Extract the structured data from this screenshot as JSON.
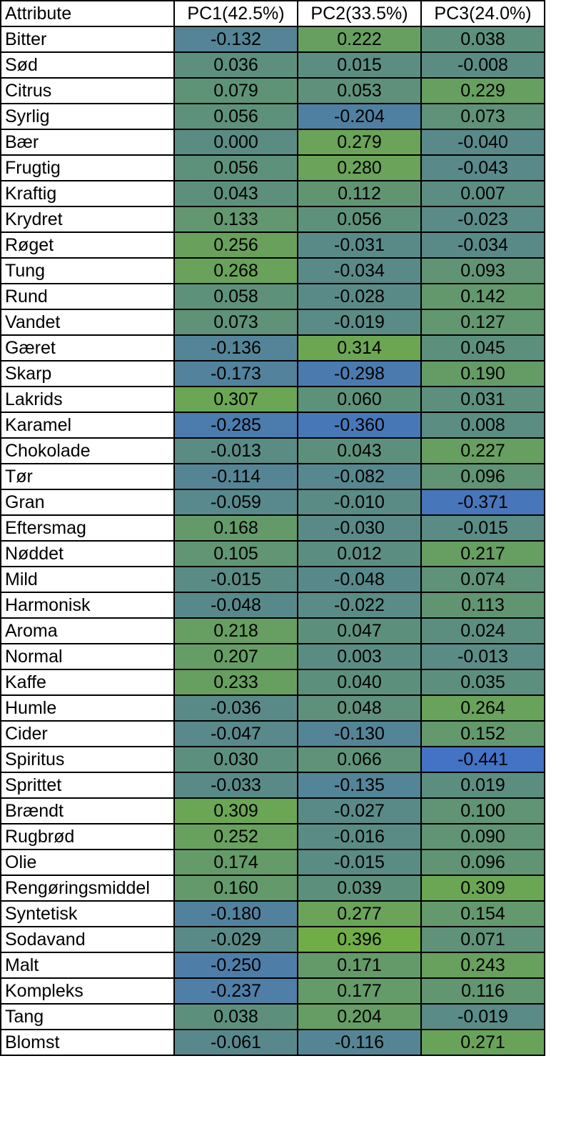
{
  "chart_data": {
    "type": "heatmap",
    "columns": [
      "Attribute",
      "PC1(42.5%)",
      "PC2(33.5%)",
      "PC3(24.0%)"
    ],
    "rows": [
      {
        "label": "Bitter",
        "values": [
          "-0.132",
          "0.222",
          "0.038"
        ]
      },
      {
        "label": "Sød",
        "values": [
          "0.036",
          "0.015",
          "-0.008"
        ]
      },
      {
        "label": "Citrus",
        "values": [
          "0.079",
          "0.053",
          "0.229"
        ]
      },
      {
        "label": "Syrlig",
        "values": [
          "0.056",
          "-0.204",
          "0.073"
        ]
      },
      {
        "label": "Bær",
        "values": [
          "0.000",
          "0.279",
          "-0.040"
        ]
      },
      {
        "label": "Frugtig",
        "values": [
          "0.056",
          "0.280",
          "-0.043"
        ]
      },
      {
        "label": "Kraftig",
        "values": [
          "0.043",
          "0.112",
          "0.007"
        ]
      },
      {
        "label": "Krydret",
        "values": [
          "0.133",
          "0.056",
          "-0.023"
        ]
      },
      {
        "label": "Røget",
        "values": [
          "0.256",
          "-0.031",
          "-0.034"
        ]
      },
      {
        "label": "Tung",
        "values": [
          "0.268",
          "-0.034",
          "0.093"
        ]
      },
      {
        "label": "Rund",
        "values": [
          "0.058",
          "-0.028",
          "0.142"
        ]
      },
      {
        "label": "Vandet",
        "values": [
          "0.073",
          "-0.019",
          "0.127"
        ]
      },
      {
        "label": "Gæret",
        "values": [
          "-0.136",
          "0.314",
          "0.045"
        ]
      },
      {
        "label": "Skarp",
        "values": [
          "-0.173",
          "-0.298",
          "0.190"
        ]
      },
      {
        "label": "Lakrids",
        "values": [
          "0.307",
          "0.060",
          "0.031"
        ]
      },
      {
        "label": "Karamel",
        "values": [
          "-0.285",
          "-0.360",
          "0.008"
        ]
      },
      {
        "label": "Chokolade",
        "values": [
          "-0.013",
          "0.043",
          "0.227"
        ]
      },
      {
        "label": "Tør",
        "values": [
          "-0.114",
          "-0.082",
          "0.096"
        ]
      },
      {
        "label": "Gran",
        "values": [
          "-0.059",
          "-0.010",
          "-0.371"
        ]
      },
      {
        "label": "Eftersmag",
        "values": [
          "0.168",
          "-0.030",
          "-0.015"
        ]
      },
      {
        "label": "Nøddet",
        "values": [
          "0.105",
          "0.012",
          "0.217"
        ]
      },
      {
        "label": "Mild",
        "values": [
          "-0.015",
          "-0.048",
          "0.074"
        ]
      },
      {
        "label": "Harmonisk",
        "values": [
          "-0.048",
          "-0.022",
          "0.113"
        ]
      },
      {
        "label": "Aroma",
        "values": [
          "0.218",
          "0.047",
          "0.024"
        ]
      },
      {
        "label": "Normal",
        "values": [
          "0.207",
          "0.003",
          "-0.013"
        ]
      },
      {
        "label": "Kaffe",
        "values": [
          "0.233",
          "0.040",
          "0.035"
        ]
      },
      {
        "label": "Humle",
        "values": [
          "-0.036",
          "0.048",
          "0.264"
        ]
      },
      {
        "label": "Cider",
        "values": [
          "-0.047",
          "-0.130",
          "0.152"
        ]
      },
      {
        "label": "Spiritus",
        "values": [
          "0.030",
          "0.066",
          "-0.441"
        ]
      },
      {
        "label": "Sprittet",
        "values": [
          "-0.033",
          "-0.135",
          "0.019"
        ]
      },
      {
        "label": "Brændt",
        "values": [
          "0.309",
          "-0.027",
          "0.100"
        ]
      },
      {
        "label": "Rugbrød",
        "values": [
          "0.252",
          "-0.016",
          "0.090"
        ]
      },
      {
        "label": "Olie",
        "values": [
          "0.174",
          "-0.015",
          "0.096"
        ]
      },
      {
        "label": "Rengøringsmiddel",
        "values": [
          "0.160",
          "0.039",
          "0.309"
        ]
      },
      {
        "label": "Syntetisk",
        "values": [
          "-0.180",
          "0.277",
          "0.154"
        ]
      },
      {
        "label": "Sodavand",
        "values": [
          "-0.029",
          "0.396",
          "0.071"
        ]
      },
      {
        "label": "Malt",
        "values": [
          "-0.250",
          "0.171",
          "0.243"
        ]
      },
      {
        "label": "Kompleks",
        "values": [
          "-0.237",
          "0.177",
          "0.116"
        ]
      },
      {
        "label": "Tang",
        "values": [
          "0.038",
          "0.204",
          "-0.019"
        ]
      },
      {
        "label": "Blomst",
        "values": [
          "-0.061",
          "-0.116",
          "0.271"
        ]
      }
    ],
    "color_scale": {
      "low_value": -0.441,
      "low_color": "#4472c4",
      "mid_value": 0.0,
      "mid_color": "#5b8c83",
      "high_value": 0.396,
      "high_color": "#70ad47"
    }
  }
}
